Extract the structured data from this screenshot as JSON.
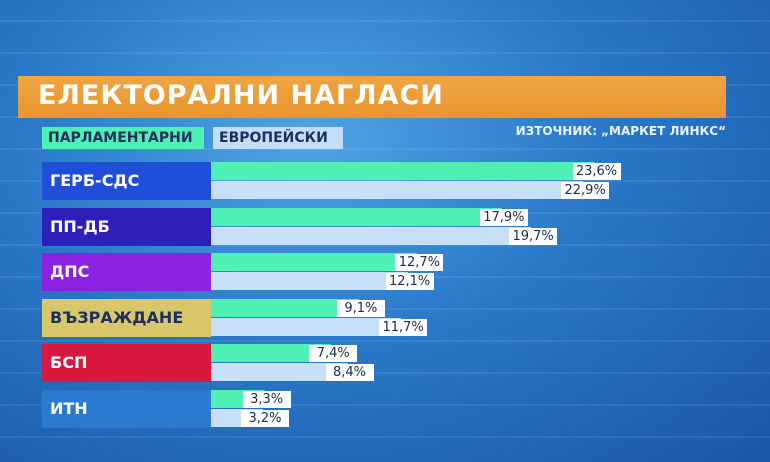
{
  "title": "ЕЛЕКТОРАЛНИ НАГЛАСИ",
  "legend": {
    "parliamentary": "ПАРЛАМЕНТАРНИ",
    "european": "ЕВРОПЕЙСКИ"
  },
  "source": "ИЗТОЧНИК: „МАРКЕТ ЛИНКС“",
  "colors": {
    "parliamentary_bar": "#4ef0b4",
    "european_bar": "#c6e0fa",
    "title_bar": "#e8952f"
  },
  "chart_data": {
    "type": "bar",
    "orientation": "horizontal",
    "title": "ЕЛЕКТОРАЛНИ НАГЛАСИ",
    "categories": [
      "ГЕРБ-СДС",
      "ПП-ДБ",
      "ДПС",
      "ВЪЗРАЖДАНЕ",
      "БСП",
      "ИТН"
    ],
    "category_colors": [
      "#1f4fd8",
      "#2d1fb8",
      "#8a22e0",
      "#d9c86a",
      "#d8193f",
      "#2a7ad0"
    ],
    "category_text_colors": [
      "#ffffff",
      "#ffffff",
      "#ffffff",
      "#1c2f5e",
      "#ffffff",
      "#ffffff"
    ],
    "series": [
      {
        "name": "ПАРЛАМЕНТАРНИ",
        "values": [
          23.6,
          17.9,
          12.7,
          9.1,
          7.4,
          3.3
        ],
        "labels": [
          "23,6%",
          "17,9%",
          "12,7%",
          "9,1%",
          "7,4%",
          "3,3%"
        ]
      },
      {
        "name": "ЕВРОПЕЙСКИ",
        "values": [
          22.9,
          19.7,
          12.1,
          11.7,
          8.4,
          3.2
        ],
        "labels": [
          "22,9%",
          "19,7%",
          "12,1%",
          "11,7%",
          "8,4%",
          "3,2%"
        ]
      }
    ],
    "xlim": [
      0,
      26
    ],
    "legend_position": "top-left"
  }
}
